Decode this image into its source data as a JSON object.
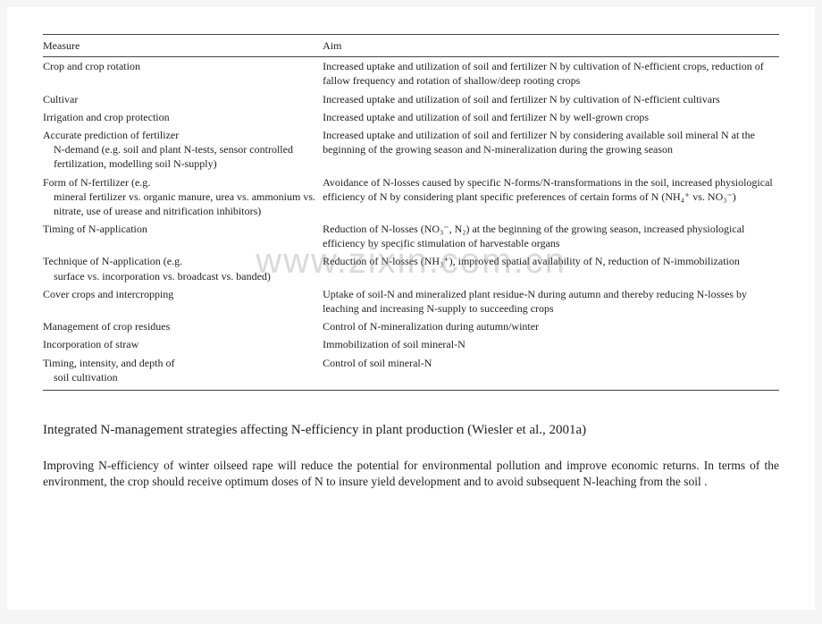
{
  "table": {
    "headers": {
      "measure": "Measure",
      "aim": "Aim"
    },
    "rows": [
      {
        "measure": "Crop and crop rotation",
        "aim": "Increased uptake and utilization of soil and fertilizer N by cultivation of N-efficient crops, reduction of fallow frequency and rotation of shallow/deep rooting crops"
      },
      {
        "measure": "Cultivar",
        "aim": "Increased uptake and utilization of soil and fertilizer N by cultivation of N-efficient cultivars"
      },
      {
        "measure": "Irrigation and crop protection",
        "aim": "Increased uptake and utilization of soil and fertilizer N by well-grown crops"
      },
      {
        "measure": "Accurate prediction of fertilizer",
        "measure_sub": "N-demand (e.g. soil and plant N-tests, sensor controlled fertilization, modelling soil N-supply)",
        "aim": "Increased uptake and utilization of soil and fertilizer N by considering available soil mineral N at the beginning of the growing season and N-mineralization during the growing season"
      },
      {
        "measure": "Form of N-fertilizer (e.g.",
        "measure_sub": "mineral fertilizer vs. organic manure, urea vs. ammonium vs. nitrate, use of urease and nitrification inhibitors)",
        "aim": "Avoidance of N-losses caused by specific N-forms/N-transformations in the soil, increased physiological efficiency of N by considering plant specific preferences of certain forms of N (NH₄⁺ vs. NO₃⁻)"
      },
      {
        "measure": "Timing of N-application",
        "aim": "Reduction of N-losses (NO₃⁻, N₂) at the beginning of the growing season, increased physiological efficiency by specific stimulation of harvestable organs"
      },
      {
        "measure": "Technique of N-application (e.g.",
        "measure_sub": "surface vs. incorporation vs. broadcast vs. banded)",
        "aim": "Reduction of N-losses (NH₃⁺), improved spatial availability of N, reduction of N-immobilization"
      },
      {
        "measure": "Cover crops and intercropping",
        "aim": "Uptake of soil-N and mineralized plant residue-N during autumn and thereby reducing N-losses by leaching and increasing N-supply to succeeding crops"
      },
      {
        "measure": "Management of crop residues",
        "aim": "Control of N-mineralization during autumn/winter"
      },
      {
        "measure": "Incorporation of straw",
        "aim": "Immobilization of soil mineral-N"
      },
      {
        "measure": "Timing, intensity, and depth of",
        "measure_sub": "soil cultivation",
        "aim": "Control of soil mineral-N"
      }
    ]
  },
  "caption": "Integrated N-management strategies affecting N-efficiency in plant production (Wiesler et al., 2001a)",
  "body": "Improving N-efficiency of winter oilseed rape will reduce the potential for environmental pollution and improve economic returns. In terms of the environment, the crop should receive optimum doses of N to insure yield development and to avoid subsequent N-leaching from the soil .",
  "watermark": "www.zixin.com.cn",
  "colors": {
    "rule": "#444444",
    "text": "#222222",
    "background": "#ffffff",
    "page_bg": "#f5f5f5",
    "watermark": "rgba(150,150,150,0.35)"
  },
  "fonts": {
    "body_family": "Times New Roman",
    "table_size_pt": 9,
    "caption_size_pt": 11,
    "body_size_pt": 10
  }
}
